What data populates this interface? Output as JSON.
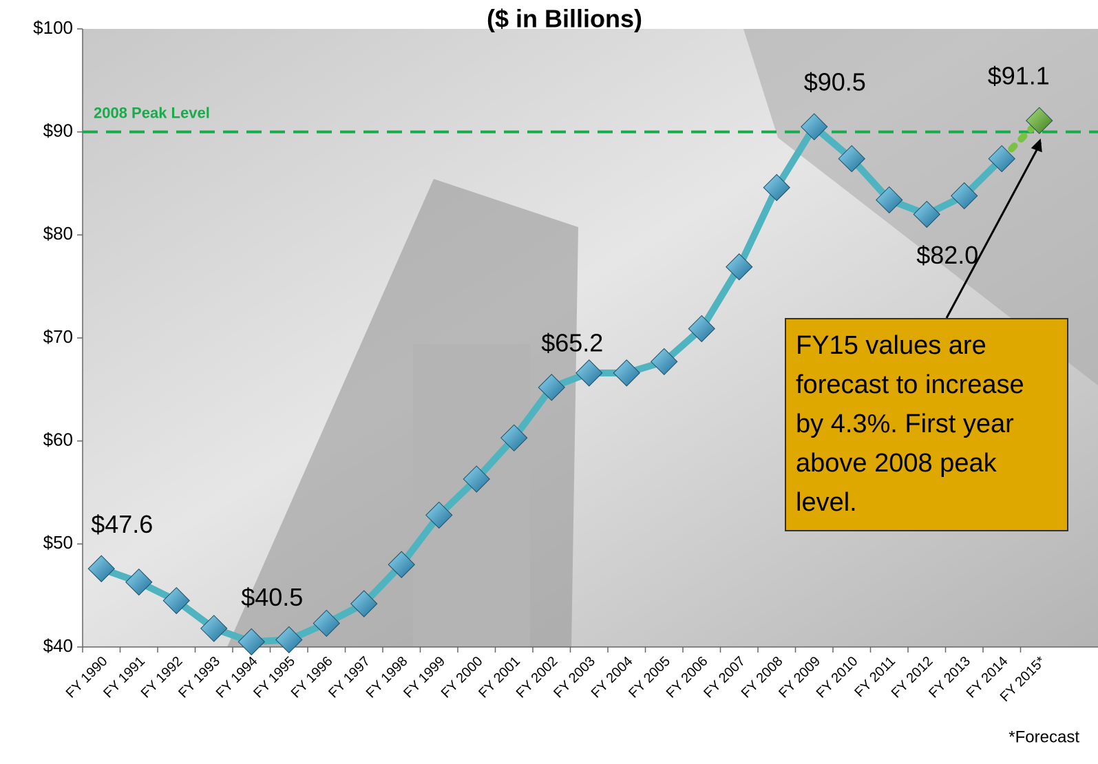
{
  "chart_data": {
    "type": "line",
    "title": "($ in Billions)",
    "categories": [
      "FY 1990",
      "FY 1991",
      "FY 1992",
      "FY 1993",
      "FY 1994",
      "FY 1995",
      "FY 1996",
      "FY 1997",
      "FY 1998",
      "FY 1999",
      "FY 2000",
      "FY 2001",
      "FY 2002",
      "FY 2003",
      "FY 2004",
      "FY 2005",
      "FY 2006",
      "FY 2007",
      "FY 2008",
      "FY 2009",
      "FY 2010",
      "FY 2011",
      "FY 2012",
      "FY 2013",
      "FY 2014",
      "FY 2015*"
    ],
    "series": [
      {
        "color": "#4fb3c0",
        "forecast_color": "#7cc242",
        "values": [
          47.6,
          46.3,
          44.5,
          41.8,
          40.5,
          40.7,
          42.3,
          44.2,
          48.0,
          52.8,
          56.3,
          60.3,
          65.2,
          66.6,
          66.6,
          67.7,
          70.9,
          76.9,
          84.6,
          90.5,
          87.4,
          83.4,
          82.0,
          83.8,
          87.4,
          91.1
        ],
        "value_labels": [
          "$47.6",
          null,
          null,
          null,
          "$40.5",
          null,
          null,
          null,
          null,
          null,
          null,
          null,
          "$65.2",
          null,
          null,
          null,
          null,
          null,
          null,
          "$90.5",
          null,
          null,
          "$82.0",
          null,
          null,
          "$91.1"
        ]
      }
    ],
    "ylim": [
      40,
      100
    ],
    "yticks": [
      {
        "value": 40,
        "label": "$40"
      },
      {
        "value": 50,
        "label": "$50"
      },
      {
        "value": 60,
        "label": "$60"
      },
      {
        "value": 70,
        "label": "$70"
      },
      {
        "value": 80,
        "label": "$80"
      },
      {
        "value": 90,
        "label": "$90"
      },
      {
        "value": 100,
        "label": "$100"
      }
    ],
    "reference_line": {
      "value": 90,
      "label": "2008 Peak Level",
      "color": "#1aaa4b"
    },
    "annotation": "FY15 values are forecast to increase by 4.3%. First year above 2008 peak level.",
    "footnote": "*Forecast"
  }
}
